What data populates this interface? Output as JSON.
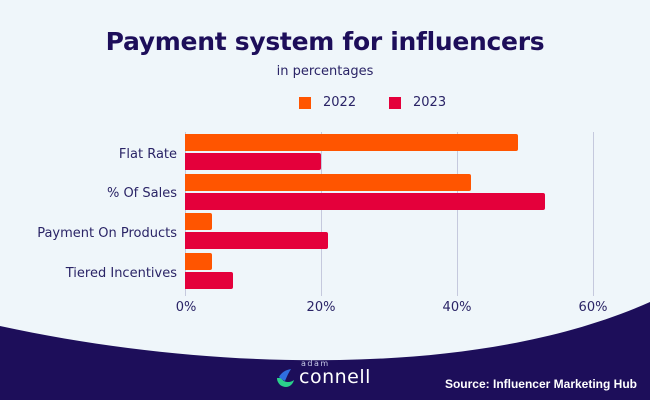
{
  "header": {
    "title": "Payment system for influencers",
    "subtitle": "in percentages"
  },
  "legend": [
    {
      "label": "2022",
      "color": "#FF5500"
    },
    {
      "label": "2023",
      "color": "#E4003B"
    }
  ],
  "axis": {
    "ticks": [
      "0%",
      "20%",
      "40%",
      "60%"
    ]
  },
  "categories": [
    "Flat Rate",
    "% Of Sales",
    "Payment On Products",
    "Tiered Incentives"
  ],
  "footer": {
    "logo_small": "adam",
    "logo_main": "connell",
    "source": "Source: Influencer Marketing Hub"
  },
  "colors": {
    "background": "#EFF6FA",
    "footer": "#1D0E5A",
    "series_2022": "#FF5500",
    "series_2023": "#E4003B",
    "text": "#2A2466"
  },
  "chart_data": {
    "type": "bar",
    "orientation": "horizontal",
    "title": "Payment system for influencers",
    "subtitle": "in percentages",
    "categories": [
      "Flat Rate",
      "% Of Sales",
      "Payment On Products",
      "Tiered Incentives"
    ],
    "series": [
      {
        "name": "2022",
        "color": "#FF5500",
        "values": [
          49,
          42,
          4,
          4
        ]
      },
      {
        "name": "2023",
        "color": "#E4003B",
        "values": [
          20,
          53,
          21,
          7
        ]
      }
    ],
    "xlabel": "",
    "ylabel": "",
    "xlim": [
      0,
      60
    ],
    "xticks": [
      "0%",
      "20%",
      "40%",
      "60%"
    ],
    "grid": "vertical",
    "legend_position": "top",
    "source": "Source: Influencer Marketing Hub"
  }
}
